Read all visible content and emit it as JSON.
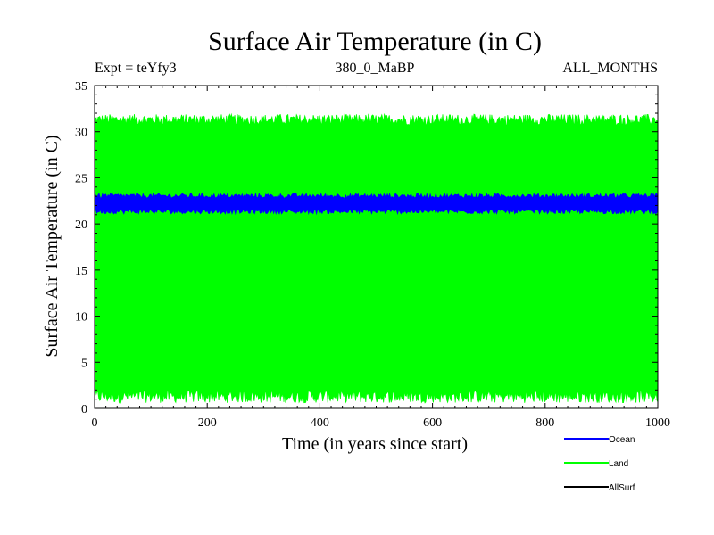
{
  "chart_data": {
    "type": "line",
    "title": "Surface Air Temperature (in C)",
    "subtitle_left": "Expt = teYfy3",
    "subtitle_center": "380_0_MaBP",
    "subtitle_right": "ALL_MONTHS",
    "xlabel": "Time (in years since start)",
    "ylabel": "Surface Air Temperature (in C)",
    "xlim": [
      0,
      1000
    ],
    "ylim": [
      0,
      35
    ],
    "xticks": [
      0,
      200,
      400,
      600,
      800,
      1000
    ],
    "yticks": [
      0,
      5,
      10,
      15,
      20,
      25,
      30,
      35
    ],
    "xtick_labels": [
      "0",
      "200",
      "400",
      "600",
      "800",
      "1000"
    ],
    "ytick_labels": [
      "0",
      "5",
      "10",
      "15",
      "20",
      "25",
      "30",
      "35"
    ],
    "legend_position": "bottom-right",
    "series": [
      {
        "name": "Land",
        "color": "#00ff00",
        "description": "monthly values oscillating between approx. 1 and 31",
        "min": 1.0,
        "max": 31.3,
        "min_range": [
          0.6,
          2.0
        ],
        "max_range": [
          30.7,
          31.9
        ]
      },
      {
        "name": "Ocean",
        "color": "#0000ff",
        "min": 21.3,
        "max": 23.0,
        "min_range": [
          21.1,
          21.6
        ],
        "max_range": [
          22.8,
          23.3
        ]
      },
      {
        "name": "AllSurf",
        "color": "#000000",
        "visible_on_plot": false
      }
    ],
    "legend": [
      {
        "label": "Ocean",
        "color": "#0000ff"
      },
      {
        "label": "Land",
        "color": "#00ff00"
      },
      {
        "label": "AllSurf",
        "color": "#000000"
      }
    ]
  }
}
